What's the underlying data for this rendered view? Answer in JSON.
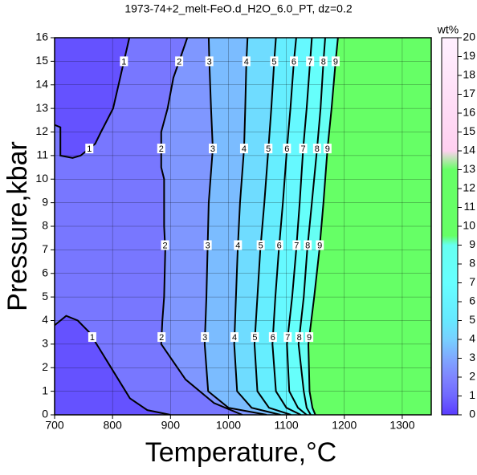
{
  "chart_data": {
    "type": "contour",
    "title": "1973-74+2_melt-FeO.d_H2O_6.0_PT, dz=0.2",
    "x_label": "Temperature,°C",
    "y_label": "Pressure,kbar",
    "colorbar_label": "wt%",
    "xlim": [
      700,
      1350
    ],
    "xticks": [
      700,
      800,
      900,
      1000,
      1100,
      1200,
      1300
    ],
    "ylim": [
      0,
      16
    ],
    "yticks": [
      0,
      1,
      2,
      3,
      4,
      5,
      6,
      7,
      8,
      9,
      10,
      11,
      12,
      13,
      14,
      15,
      16
    ],
    "clim": [
      0,
      20
    ],
    "cticks": [
      0,
      1,
      2,
      3,
      4,
      5,
      6,
      7,
      8,
      9,
      10,
      11,
      12,
      13,
      14,
      15,
      16,
      17,
      18,
      19,
      20
    ],
    "grid": true,
    "colormap": [
      [
        0,
        "#5a3cff"
      ],
      [
        1,
        "#7068ff"
      ],
      [
        2,
        "#7f85ff"
      ],
      [
        3,
        "#7fa8ff"
      ],
      [
        4,
        "#77d0ff"
      ],
      [
        5,
        "#66e8ff"
      ],
      [
        7,
        "#66ffff"
      ],
      [
        9,
        "#66fff0"
      ],
      [
        9.5,
        "#66ff66"
      ],
      [
        13,
        "#66ff66"
      ],
      [
        14,
        "#ffd0f0"
      ],
      [
        20,
        "#fff0ff"
      ]
    ],
    "contours": [
      {
        "level": 1,
        "x": [
          700,
          720,
          740,
          760,
          790,
          810,
          830,
          860,
          900
        ],
        "y": [
          3.8,
          4.2,
          4.0,
          3.5,
          2.3,
          1.5,
          0.7,
          0.2,
          0
        ]
      },
      {
        "level": 1,
        "x": [
          829,
          801,
          780,
          770,
          745,
          731,
          710,
          710,
          700
        ],
        "y": [
          16,
          13,
          12,
          11.5,
          11,
          10.9,
          11,
          12.2,
          12.3
        ]
      },
      {
        "level": 2,
        "x": [
          1024,
          975,
          926,
          898,
          884,
          886,
          889,
          891,
          889,
          889,
          889,
          884,
          884,
          895,
          905,
          915,
          929
        ],
        "y": [
          0,
          0.5,
          1.5,
          2.5,
          3,
          4,
          5,
          7,
          8,
          9,
          10,
          10.5,
          12,
          13,
          14.3,
          15,
          16
        ]
      },
      {
        "level": 3,
        "x": [
          1066,
          1000,
          965,
          959,
          962,
          964,
          966,
          973,
          970,
          967,
          966
        ],
        "y": [
          0,
          0.3,
          1,
          3,
          5,
          7,
          9,
          11.3,
          13,
          15,
          16
        ]
      },
      {
        "level": 4,
        "x": [
          1090,
          1040,
          1015,
          1010,
          1013,
          1016,
          1020,
          1027,
          1029,
          1031,
          1033
        ],
        "y": [
          0,
          0.3,
          1,
          3,
          5,
          7,
          9,
          11.3,
          13,
          15,
          16
        ]
      },
      {
        "level": 5,
        "x": [
          1108,
          1070,
          1050,
          1045,
          1050,
          1055,
          1062,
          1069,
          1074,
          1079,
          1082
        ],
        "y": [
          0,
          0.3,
          1,
          3,
          5,
          7,
          9,
          11.3,
          13,
          15,
          16
        ]
      },
      {
        "level": 6,
        "x": [
          1125,
          1100,
          1082,
          1076,
          1081,
          1087,
          1094,
          1101,
          1107,
          1113,
          1117
        ],
        "y": [
          0,
          0.3,
          1,
          3,
          5,
          7,
          9,
          11.3,
          13,
          15,
          16
        ]
      },
      {
        "level": 7,
        "x": [
          1135,
          1120,
          1105,
          1101,
          1110,
          1117,
          1123,
          1129,
          1135,
          1141,
          1144
        ],
        "y": [
          0,
          0.3,
          1,
          3,
          5,
          7,
          9,
          11.3,
          13,
          15,
          16
        ]
      },
      {
        "level": 8,
        "x": [
          1142,
          1135,
          1130,
          1121,
          1130,
          1136,
          1144,
          1153,
          1159,
          1164,
          1167
        ],
        "y": [
          0,
          0.3,
          1,
          3,
          5,
          7,
          9,
          11.3,
          13,
          15,
          16
        ]
      },
      {
        "level": 9,
        "x": [
          1150,
          1145,
          1140,
          1138,
          1148,
          1157,
          1164,
          1171,
          1178,
          1185,
          1189
        ],
        "y": [
          0,
          0.3,
          1,
          3,
          5,
          7,
          9,
          11.3,
          13,
          15,
          16
        ]
      }
    ]
  }
}
